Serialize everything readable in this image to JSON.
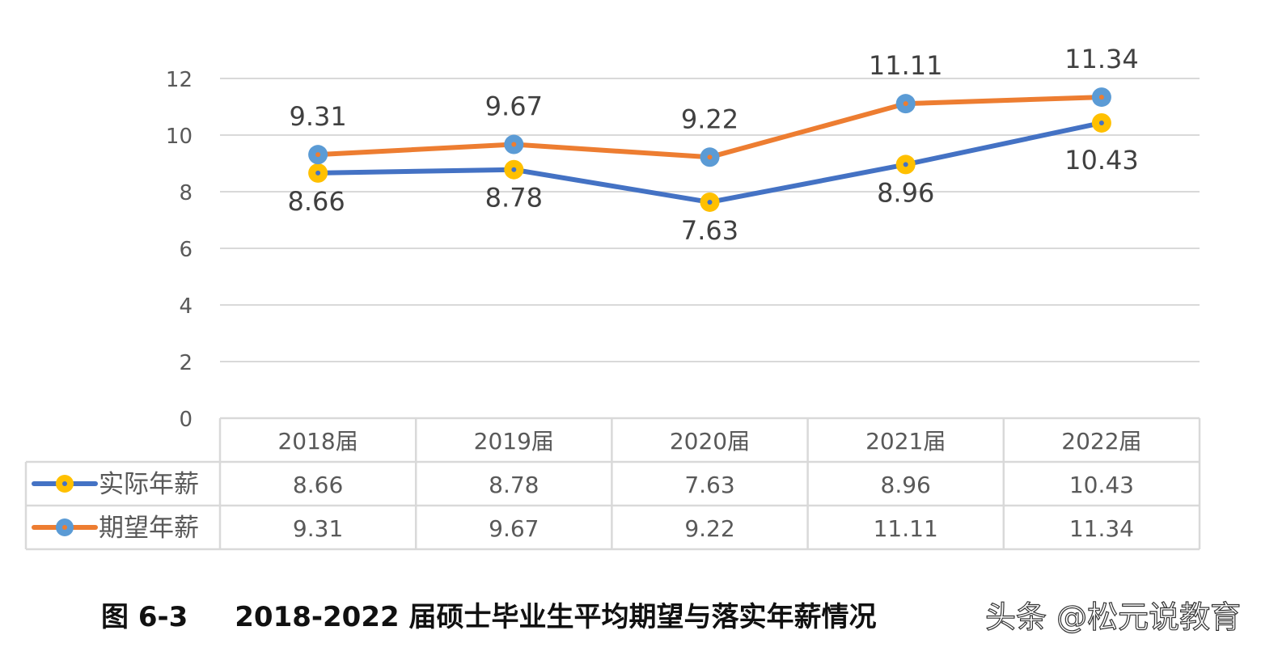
{
  "chart_data": {
    "type": "line",
    "categories": [
      "2018届",
      "2019届",
      "2020届",
      "2021届",
      "2022届"
    ],
    "series": [
      {
        "name": "实际年薪",
        "values": [
          8.66,
          8.78,
          7.63,
          8.96,
          10.43
        ],
        "line_color": "#4472C4",
        "marker_color": "#FFC000"
      },
      {
        "name": "期望年薪",
        "values": [
          9.31,
          9.67,
          9.22,
          11.11,
          11.34
        ],
        "line_color": "#ED7D31",
        "marker_color": "#5B9BD5"
      }
    ],
    "y_ticks": [
      "0",
      "2",
      "4",
      "6",
      "8",
      "10",
      "12"
    ],
    "ylim": [
      0,
      12
    ],
    "grid": true,
    "data_table": true
  },
  "caption": {
    "figure_number": "图 6-3",
    "title": "2018-2022 届硕士毕业生平均期望与落实年薪情况"
  },
  "watermark": "头条 @松元说教育"
}
